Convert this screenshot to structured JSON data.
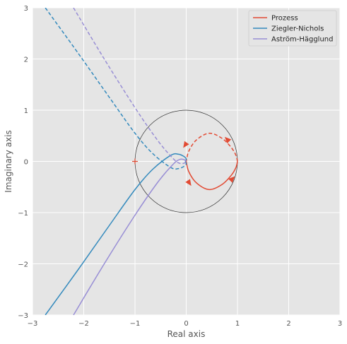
{
  "chart_data": {
    "type": "line",
    "title": "",
    "xlabel": "Real axis",
    "ylabel": "Imaginary axis",
    "xlim": [
      -3,
      3
    ],
    "ylim": [
      -3,
      3
    ],
    "xticks": [
      -3,
      -2,
      -1,
      0,
      1,
      2,
      3
    ],
    "yticks": [
      -3,
      -2,
      -1,
      0,
      1,
      2,
      3
    ],
    "xtick_labels": [
      "−3",
      "−2",
      "−1",
      "0",
      "1",
      "2",
      "3"
    ],
    "ytick_labels": [
      "−3",
      "−2",
      "−1",
      "0",
      "1",
      "2",
      "3"
    ],
    "grid": true,
    "legend_position": "top-right",
    "critical_point": {
      "x": -1,
      "y": 0,
      "marker": "+",
      "color": "#e24a33"
    },
    "unit_circle": {
      "center": [
        0,
        0
      ],
      "radius": 1,
      "color": "#333333"
    },
    "series": [
      {
        "name": "Prozess",
        "color": "#e24a33",
        "style": "solid",
        "points": [
          [
            0,
            0
          ],
          [
            0.05,
            -0.2
          ],
          [
            0.2,
            -0.42
          ],
          [
            0.45,
            -0.55
          ],
          [
            0.7,
            -0.45
          ],
          [
            0.88,
            -0.27
          ],
          [
            0.97,
            -0.12
          ],
          [
            1.0,
            0
          ]
        ],
        "arrows": [
          [
            0.06,
            -0.42
          ],
          [
            0.9,
            -0.34
          ]
        ]
      },
      {
        "name": "Prozess (mirror)",
        "color": "#e24a33",
        "style": "dashed",
        "points": [
          [
            1.0,
            0
          ],
          [
            0.97,
            0.12
          ],
          [
            0.88,
            0.27
          ],
          [
            0.7,
            0.45
          ],
          [
            0.45,
            0.55
          ],
          [
            0.2,
            0.42
          ],
          [
            0.05,
            0.2
          ],
          [
            0,
            0
          ]
        ],
        "arrows": [
          [
            0.8,
            0.43
          ],
          [
            -0.02,
            0.32
          ]
        ]
      },
      {
        "name": "Ziegler-Nichols",
        "color": "#348abd",
        "style": "solid",
        "points": [
          [
            -2.75,
            -3.0
          ],
          [
            -2.1,
            -2.1
          ],
          [
            -1.5,
            -1.25
          ],
          [
            -1.0,
            -0.55
          ],
          [
            -0.65,
            -0.15
          ],
          [
            -0.3,
            0.12
          ],
          [
            -0.15,
            0.14
          ],
          [
            -0.05,
            0.1
          ],
          [
            0,
            0.05
          ],
          [
            -0.02,
            0
          ]
        ]
      },
      {
        "name": "Ziegler-Nichols (mirror)",
        "color": "#348abd",
        "style": "dashed",
        "points": [
          [
            -2.75,
            3.0
          ],
          [
            -2.1,
            2.1
          ],
          [
            -1.5,
            1.25
          ],
          [
            -1.0,
            0.55
          ],
          [
            -0.65,
            0.15
          ],
          [
            -0.3,
            -0.12
          ],
          [
            -0.15,
            -0.14
          ],
          [
            -0.05,
            -0.1
          ],
          [
            0,
            -0.05
          ],
          [
            -0.02,
            0
          ]
        ]
      },
      {
        "name": "Aström-Hägglund",
        "color": "#988ed5",
        "style": "solid",
        "points": [
          [
            -2.2,
            -3.0
          ],
          [
            -1.6,
            -2.0
          ],
          [
            -1.0,
            -1.05
          ],
          [
            -0.55,
            -0.4
          ],
          [
            -0.25,
            -0.05
          ],
          [
            -0.12,
            0.04
          ],
          [
            -0.03,
            0.03
          ],
          [
            0,
            0
          ]
        ]
      },
      {
        "name": "Aström-Hägglund (mirror)",
        "color": "#988ed5",
        "style": "dashed",
        "points": [
          [
            -2.2,
            3.0
          ],
          [
            -1.6,
            2.0
          ],
          [
            -1.0,
            1.05
          ],
          [
            -0.55,
            0.4
          ],
          [
            -0.25,
            0.05
          ],
          [
            -0.12,
            -0.04
          ],
          [
            -0.03,
            -0.03
          ],
          [
            0,
            0
          ]
        ]
      }
    ],
    "legend": [
      {
        "label": "Prozess",
        "color": "#e24a33"
      },
      {
        "label": "Ziegler-Nichols",
        "color": "#348abd"
      },
      {
        "label": "Aström-Hägglund",
        "color": "#988ed5"
      }
    ]
  }
}
